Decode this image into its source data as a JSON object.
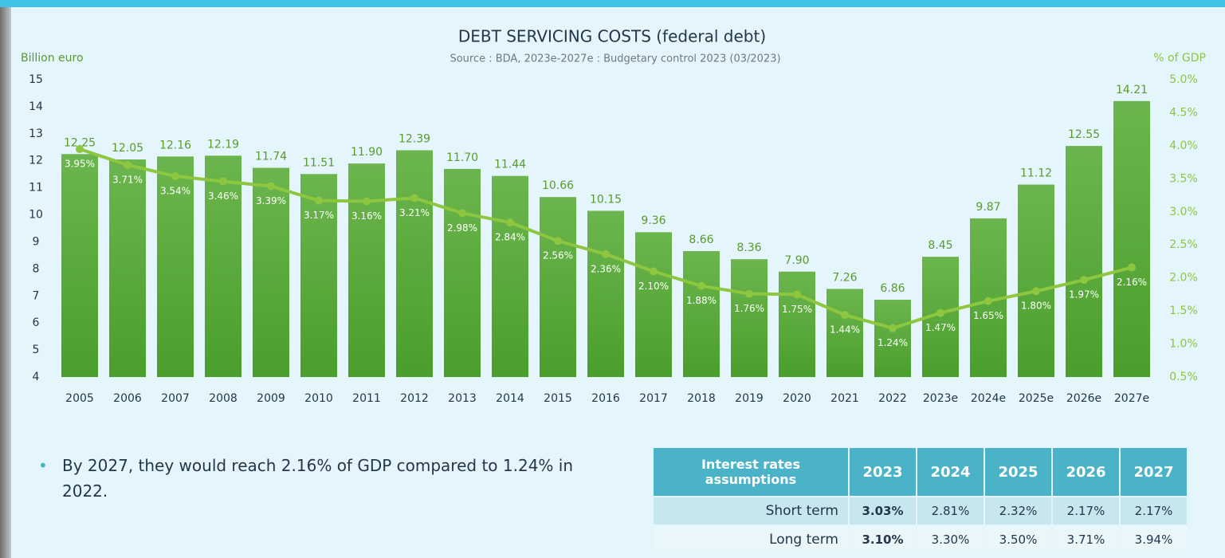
{
  "chart_data": {
    "type": "bar_line",
    "title": "DEBT SERVICING COSTS (federal debt)",
    "subtitle": "Source : BDA, 2023e-2027e : Budgetary control 2023 (03/2023)",
    "y_label": "Billion euro",
    "y2_label": "% of GDP",
    "categories": [
      "2005",
      "2006",
      "2007",
      "2008",
      "2009",
      "2010",
      "2011",
      "2012",
      "2013",
      "2014",
      "2015",
      "2016",
      "2017",
      "2018",
      "2019",
      "2020",
      "2021",
      "2022",
      "2023e",
      "2024e",
      "2025e",
      "2026e",
      "2027e"
    ],
    "series": [
      {
        "name": "Debt servicing costs",
        "type": "bar",
        "color": "#5ca83a",
        "values": [
          12.25,
          12.05,
          12.16,
          12.19,
          11.74,
          11.51,
          11.9,
          12.39,
          11.7,
          11.44,
          10.66,
          10.15,
          9.36,
          8.66,
          8.36,
          7.9,
          7.26,
          6.86,
          8.45,
          9.87,
          11.12,
          12.55,
          14.21
        ],
        "value_labels": [
          "12.25",
          "12.05",
          "12.16",
          "12.19",
          "11.74",
          "11.51",
          "11.90",
          "12.39",
          "11.70",
          "11.44",
          "10.66",
          "10.15",
          "9.36",
          "8.66",
          "8.36",
          "7.90",
          "7.26",
          "6.86",
          "8.45",
          "9.87",
          "11.12",
          "12.55",
          "14.21"
        ]
      },
      {
        "name": "% of GDP",
        "type": "line",
        "axis": "y2",
        "color": "#8dc63f",
        "values": [
          3.95,
          3.71,
          3.54,
          3.46,
          3.39,
          3.17,
          3.16,
          3.21,
          2.98,
          2.84,
          2.56,
          2.36,
          2.1,
          1.88,
          1.76,
          1.75,
          1.44,
          1.24,
          1.47,
          1.65,
          1.8,
          1.97,
          2.16
        ],
        "value_labels": [
          "3.95%",
          "3.71%",
          "3.54%",
          "3.46%",
          "3.39%",
          "3.17%",
          "3.16%",
          "3.21%",
          "2.98%",
          "2.84%",
          "2.56%",
          "2.36%",
          "2.10%",
          "1.88%",
          "1.76%",
          "1.75%",
          "1.44%",
          "1.24%",
          "1.47%",
          "1.65%",
          "1.80%",
          "1.97%",
          "2.16%"
        ]
      }
    ],
    "ylim": [
      4,
      15
    ],
    "yticks": [
      4,
      5,
      6,
      7,
      8,
      9,
      10,
      11,
      12,
      13,
      14,
      15
    ],
    "y2lim": [
      0.5,
      5.0
    ],
    "y2ticks": [
      {
        "value": 0.5,
        "label": "0.5%"
      },
      {
        "value": 1.0,
        "label": "1.0%"
      },
      {
        "value": 1.5,
        "label": "1.5%"
      },
      {
        "value": 2.0,
        "label": "2.0%"
      },
      {
        "value": 2.5,
        "label": "2.5%"
      },
      {
        "value": 3.0,
        "label": "3.0%"
      },
      {
        "value": 3.5,
        "label": "3.5%"
      },
      {
        "value": 4.0,
        "label": "4.0%"
      },
      {
        "value": 4.5,
        "label": "4.5%"
      },
      {
        "value": 5.0,
        "label": "5.0%"
      }
    ],
    "grid": false
  },
  "bullet": "By 2027, they would reach 2.16% of GDP compared to 1.24% in 2022.",
  "table": {
    "header": [
      "Interest rates assumptions",
      "2023",
      "2024",
      "2025",
      "2026",
      "2027"
    ],
    "rows": [
      [
        "Short term",
        "3.03%",
        "2.81%",
        "2.32%",
        "2.17%",
        "2.17%"
      ],
      [
        "Long term",
        "3.10%",
        "3.30%",
        "3.50%",
        "3.71%",
        "3.94%"
      ]
    ]
  }
}
